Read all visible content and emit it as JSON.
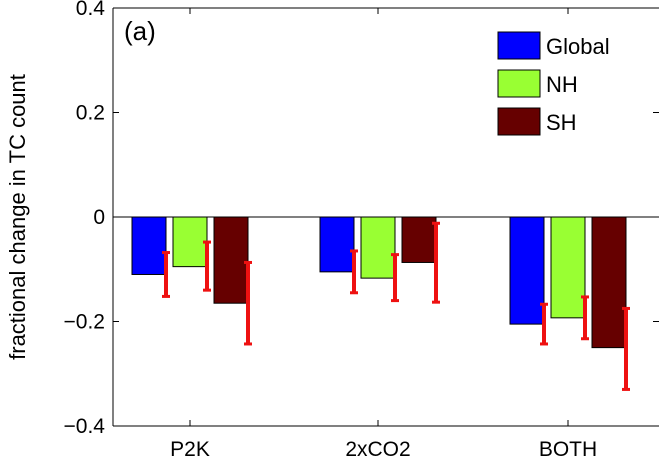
{
  "chart_data": {
    "type": "bar",
    "panel_label": "(a)",
    "ylabel": "fractional change in TC count",
    "xlabel": "",
    "ylim": [
      -0.4,
      0.4
    ],
    "yticks": [
      -0.4,
      -0.2,
      0,
      0.2,
      0.4
    ],
    "ytick_labels": [
      "−0.4",
      "−0.2",
      "0",
      "0.2",
      "0.4"
    ],
    "categories": [
      "P2K",
      "2xCO2",
      "BOTH"
    ],
    "legend_placement": "top-right",
    "series": [
      {
        "name": "Global",
        "color": "#0000ff",
        "values": [
          -0.11,
          -0.105,
          -0.205
        ],
        "error_low": [
          -0.152,
          -0.145,
          -0.243
        ],
        "error_high": [
          -0.068,
          -0.065,
          -0.167
        ]
      },
      {
        "name": "NH",
        "color": "#99ff33",
        "values": [
          -0.095,
          -0.117,
          -0.193
        ],
        "error_low": [
          -0.14,
          -0.16,
          -0.233
        ],
        "error_high": [
          -0.048,
          -0.072,
          -0.153
        ]
      },
      {
        "name": "SH",
        "color": "#660000",
        "values": [
          -0.165,
          -0.087,
          -0.25
        ],
        "error_low": [
          -0.243,
          -0.163,
          -0.33
        ],
        "error_high": [
          -0.087,
          -0.012,
          -0.175
        ]
      }
    ],
    "error_bar_color": "#ee1111"
  }
}
